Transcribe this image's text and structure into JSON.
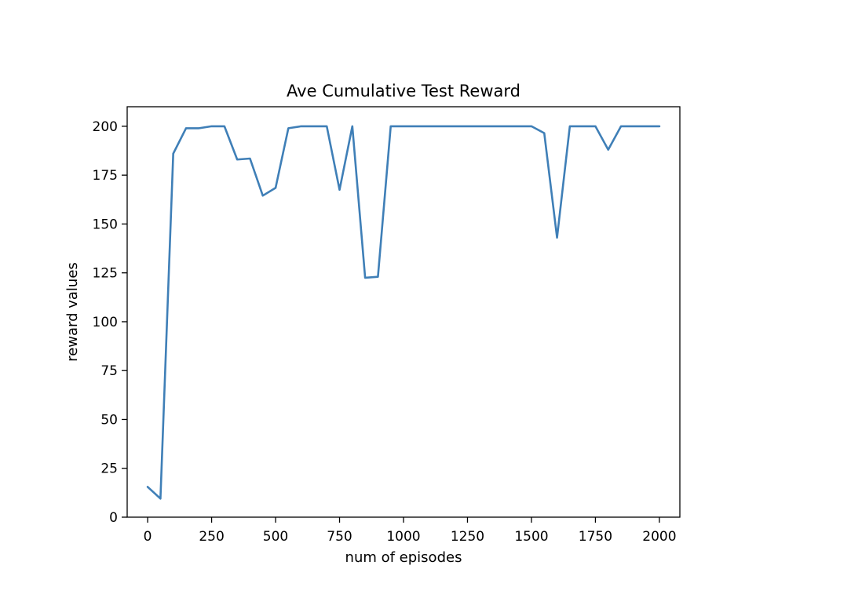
{
  "chart_data": {
    "type": "line",
    "title": "Ave Cumulative Test Reward",
    "xlabel": "num of episodes",
    "ylabel": "reward values",
    "xlim": [
      -80,
      2080
    ],
    "ylim": [
      0,
      210
    ],
    "xticks": [
      0,
      250,
      500,
      750,
      1000,
      1250,
      1500,
      1750,
      2000
    ],
    "yticks": [
      0,
      25,
      50,
      75,
      100,
      125,
      150,
      175,
      200
    ],
    "xtick_labels": [
      "0",
      "250",
      "500",
      "750",
      "1000",
      "1250",
      "1500",
      "1750",
      "2000"
    ],
    "ytick_labels": [
      "0",
      "25",
      "50",
      "75",
      "100",
      "125",
      "150",
      "175",
      "200"
    ],
    "grid": false,
    "series": [
      {
        "color": "#3f7fb7",
        "x": [
          0,
          50,
          100,
          150,
          200,
          250,
          300,
          350,
          400,
          450,
          500,
          550,
          600,
          650,
          700,
          750,
          800,
          850,
          900,
          950,
          1000,
          1050,
          1100,
          1150,
          1200,
          1250,
          1300,
          1350,
          1400,
          1450,
          1500,
          1550,
          1600,
          1650,
          1700,
          1750,
          1800,
          1850,
          1900,
          1950,
          2000
        ],
        "y": [
          15.5,
          9.5,
          186,
          199,
          199,
          200,
          200,
          183,
          183.5,
          164.5,
          168.5,
          199,
          200,
          200,
          200,
          167.5,
          200,
          122.5,
          123,
          200,
          200,
          200,
          200,
          200,
          200,
          200,
          200,
          200,
          200,
          200,
          200,
          196.5,
          143,
          200,
          200,
          200,
          188,
          200,
          200,
          200,
          200
        ]
      }
    ]
  }
}
